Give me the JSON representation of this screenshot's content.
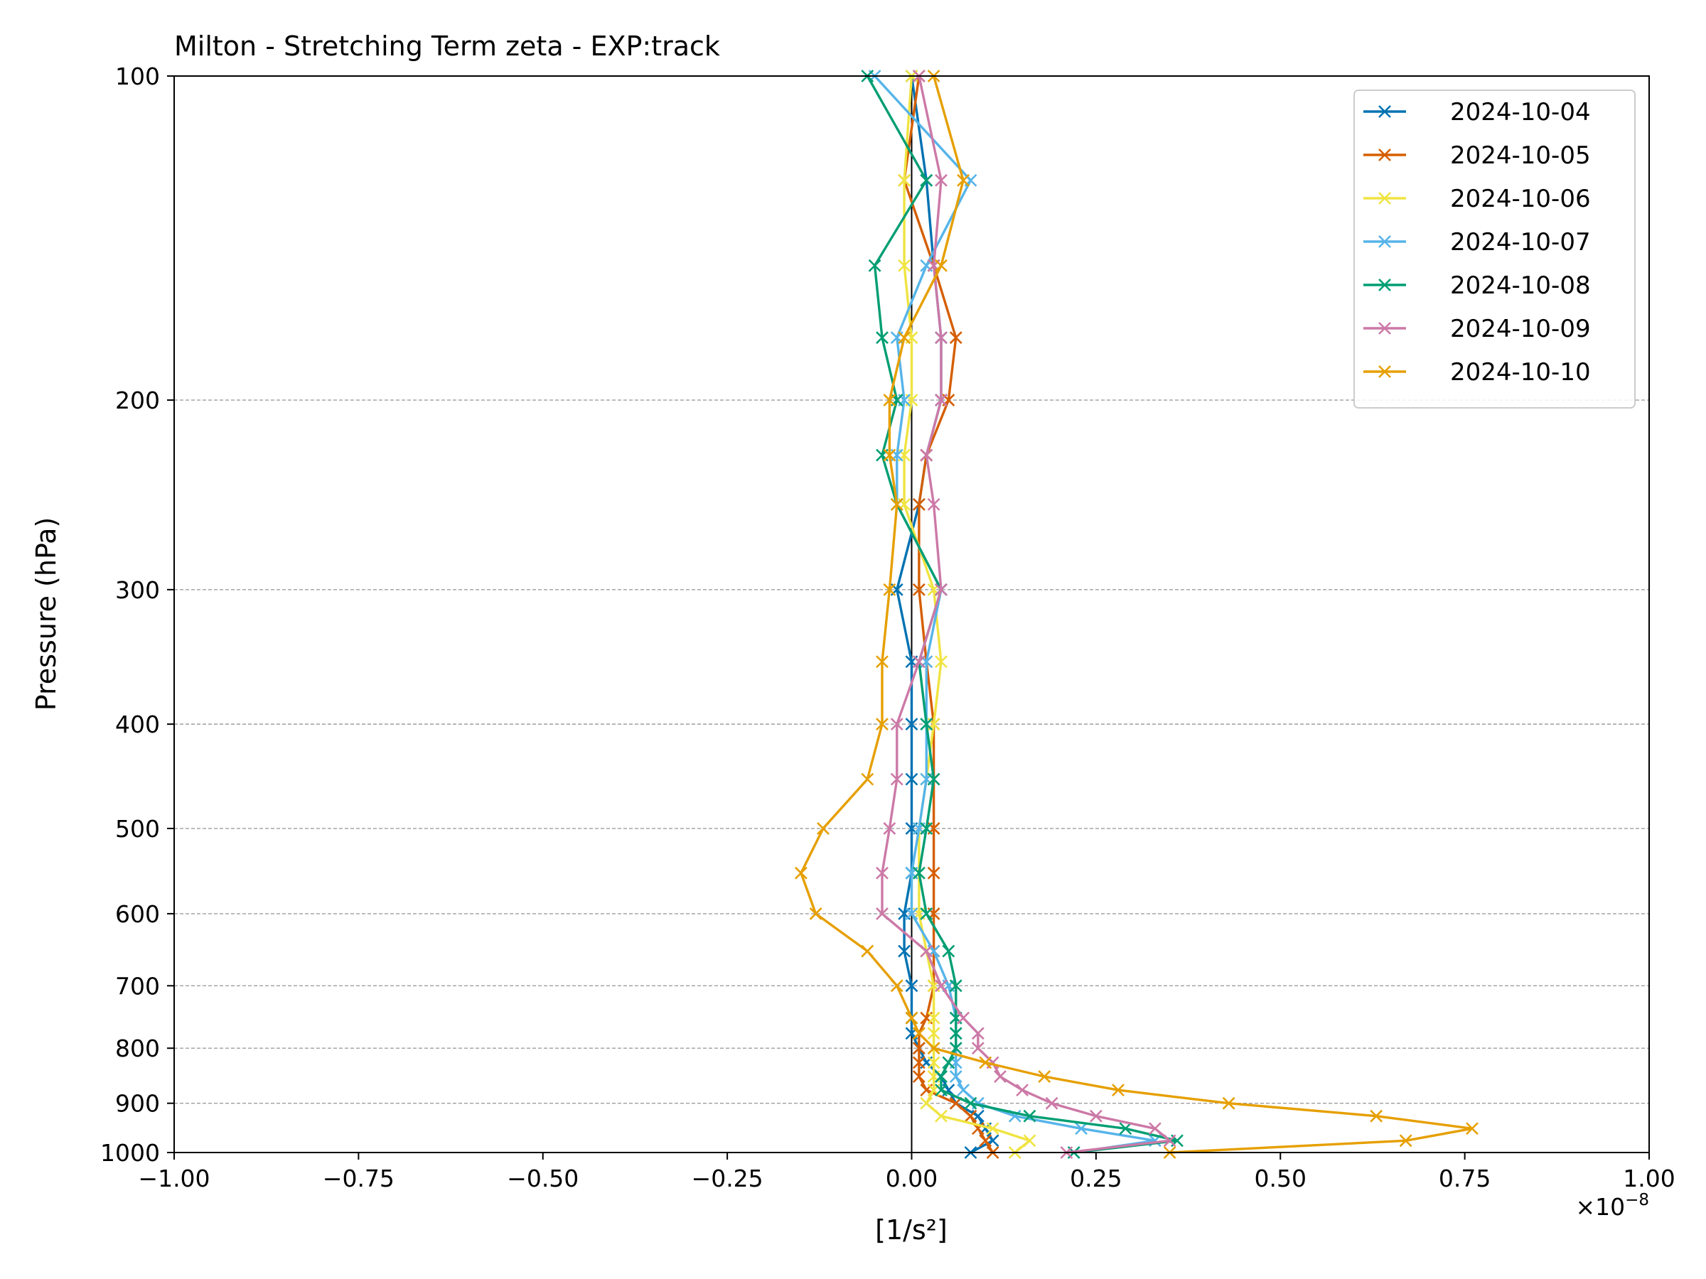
{
  "chart_data": {
    "type": "line",
    "title": "Milton - Stretching Term zeta - EXP:track",
    "xlabel": "[1/s²]",
    "ylabel": "Pressure (hPa)",
    "x_scale_label": "×10",
    "x_scale_exponent": "−8",
    "xlim": [
      -1.0,
      1.0
    ],
    "ylim": [
      1000,
      100
    ],
    "y_scale": "log",
    "x_ticks": [
      -1.0,
      -0.75,
      -0.5,
      -0.25,
      0.0,
      0.25,
      0.5,
      0.75,
      1.0
    ],
    "x_tick_labels": [
      "−1.00",
      "−0.75",
      "−0.50",
      "−0.25",
      "0.00",
      "0.25",
      "0.50",
      "0.75",
      "1.00"
    ],
    "y_ticks": [
      100,
      200,
      300,
      400,
      500,
      600,
      700,
      800,
      900,
      1000
    ],
    "y_tick_labels": [
      "100",
      "200",
      "300",
      "400",
      "500",
      "600",
      "700",
      "800",
      "900",
      "1000"
    ],
    "grid": "horizontal dashed at y ticks",
    "legend_position": "top-right",
    "marker": "x",
    "pressure_levels": [
      1000,
      975,
      950,
      925,
      900,
      875,
      850,
      825,
      800,
      775,
      750,
      700,
      650,
      600,
      550,
      500,
      450,
      400,
      350,
      300,
      250,
      225,
      200,
      175,
      150,
      125,
      100
    ],
    "series": [
      {
        "name": "2024-10-04",
        "color": "#0072B2",
        "values": [
          0.08,
          0.11,
          0.1,
          0.09,
          0.06,
          0.05,
          0.04,
          0.02,
          0.01,
          0.0,
          0.0,
          0.0,
          -0.01,
          -0.01,
          0.0,
          0.0,
          0.0,
          0.0,
          0.0,
          -0.02,
          0.01,
          0.02,
          0.04,
          0.04,
          0.03,
          0.02,
          0.0
        ]
      },
      {
        "name": "2024-10-05",
        "color": "#D55E00",
        "values": [
          0.11,
          0.1,
          0.09,
          0.08,
          0.06,
          0.02,
          0.01,
          0.01,
          0.01,
          0.01,
          0.02,
          0.03,
          0.03,
          0.03,
          0.03,
          0.03,
          0.03,
          0.03,
          0.02,
          0.01,
          0.01,
          0.02,
          0.05,
          0.06,
          0.03,
          -0.01,
          0.01
        ]
      },
      {
        "name": "2024-10-06",
        "color": "#F0E442",
        "values": [
          0.14,
          0.16,
          0.11,
          0.04,
          0.02,
          0.03,
          0.03,
          0.03,
          0.03,
          0.03,
          0.03,
          0.03,
          0.02,
          0.01,
          0.01,
          0.01,
          0.02,
          0.03,
          0.04,
          0.03,
          -0.01,
          -0.01,
          0.0,
          0.0,
          -0.01,
          -0.01,
          0.0
        ]
      },
      {
        "name": "2024-10-07",
        "color": "#56B4E9",
        "values": [
          0.22,
          0.33,
          0.23,
          0.14,
          0.09,
          0.07,
          0.06,
          0.06,
          0.06,
          0.06,
          0.06,
          0.05,
          0.03,
          0.0,
          0.0,
          0.01,
          0.02,
          0.02,
          0.02,
          0.04,
          -0.02,
          -0.02,
          -0.01,
          -0.02,
          0.02,
          0.08,
          -0.05
        ]
      },
      {
        "name": "2024-10-08",
        "color": "#009E73",
        "values": [
          0.22,
          0.36,
          0.29,
          0.16,
          0.08,
          0.04,
          0.04,
          0.05,
          0.06,
          0.06,
          0.06,
          0.06,
          0.05,
          0.02,
          0.01,
          0.02,
          0.03,
          0.02,
          0.01,
          0.04,
          -0.02,
          -0.04,
          -0.02,
          -0.04,
          -0.05,
          0.02,
          -0.06
        ]
      },
      {
        "name": "2024-10-09",
        "color": "#CC79A7",
        "values": [
          0.21,
          0.35,
          0.33,
          0.25,
          0.19,
          0.15,
          0.12,
          0.11,
          0.09,
          0.09,
          0.07,
          0.04,
          0.02,
          -0.04,
          -0.04,
          -0.03,
          -0.02,
          -0.02,
          0.01,
          0.04,
          0.03,
          0.02,
          0.04,
          0.04,
          0.03,
          0.04,
          0.01
        ]
      },
      {
        "name": "2024-10-10",
        "color": "#E69F00",
        "values": [
          0.35,
          0.67,
          0.76,
          0.63,
          0.43,
          0.28,
          0.18,
          0.1,
          0.03,
          0.01,
          0.0,
          -0.02,
          -0.06,
          -0.13,
          -0.15,
          -0.12,
          -0.06,
          -0.04,
          -0.04,
          -0.03,
          -0.02,
          -0.03,
          -0.03,
          -0.01,
          0.04,
          0.07,
          0.03
        ]
      }
    ]
  }
}
